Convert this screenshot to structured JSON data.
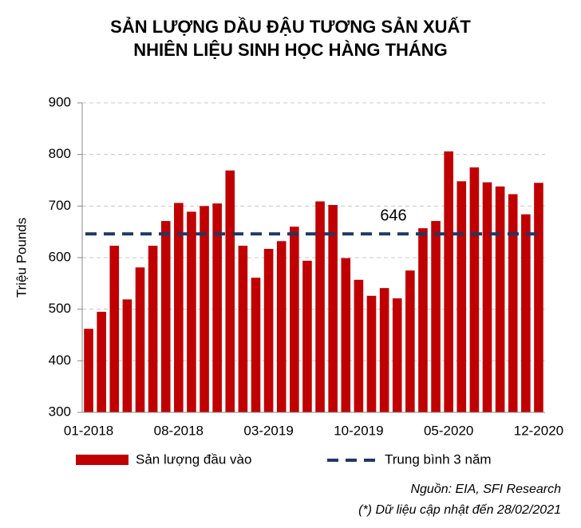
{
  "chart_data": {
    "type": "bar",
    "title": [
      "SẢN LƯỢNG DẦU ĐẬU TƯƠNG SẢN XUẤT",
      "NHIÊN LIỆU SINH HỌC HÀNG THÁNG"
    ],
    "y_label": "Triệu Pounds",
    "categories": [
      "01-2018",
      null,
      null,
      null,
      null,
      null,
      null,
      "08-2018",
      null,
      null,
      null,
      null,
      null,
      null,
      "03-2019",
      null,
      null,
      null,
      null,
      null,
      null,
      "10-2019",
      null,
      null,
      null,
      null,
      null,
      null,
      "05-2020",
      null,
      null,
      null,
      null,
      null,
      null,
      "12-2020"
    ],
    "series": [
      {
        "name": "Sản lượng đầu vào",
        "color": "#c00000",
        "values": [
          462,
          495,
          623,
          519,
          581,
          623,
          671,
          706,
          689,
          700,
          705,
          769,
          623,
          561,
          617,
          632,
          660,
          594,
          709,
          702,
          599,
          557,
          526,
          541,
          521,
          575,
          657,
          671,
          806,
          748,
          775,
          746,
          738,
          723,
          684,
          745
        ]
      }
    ],
    "reference_line": {
      "name": "Trung bình 3 năm",
      "color": "#1f3864",
      "value": 646
    },
    "ylim": [
      300,
      900
    ],
    "yticks": [
      300,
      400,
      500,
      600,
      700,
      800,
      900
    ],
    "grid": true,
    "notes": [
      "Nguồn: EIA, SFI Research",
      "(*) Dữ liệu cập nhật đến 28/02/2021"
    ]
  }
}
